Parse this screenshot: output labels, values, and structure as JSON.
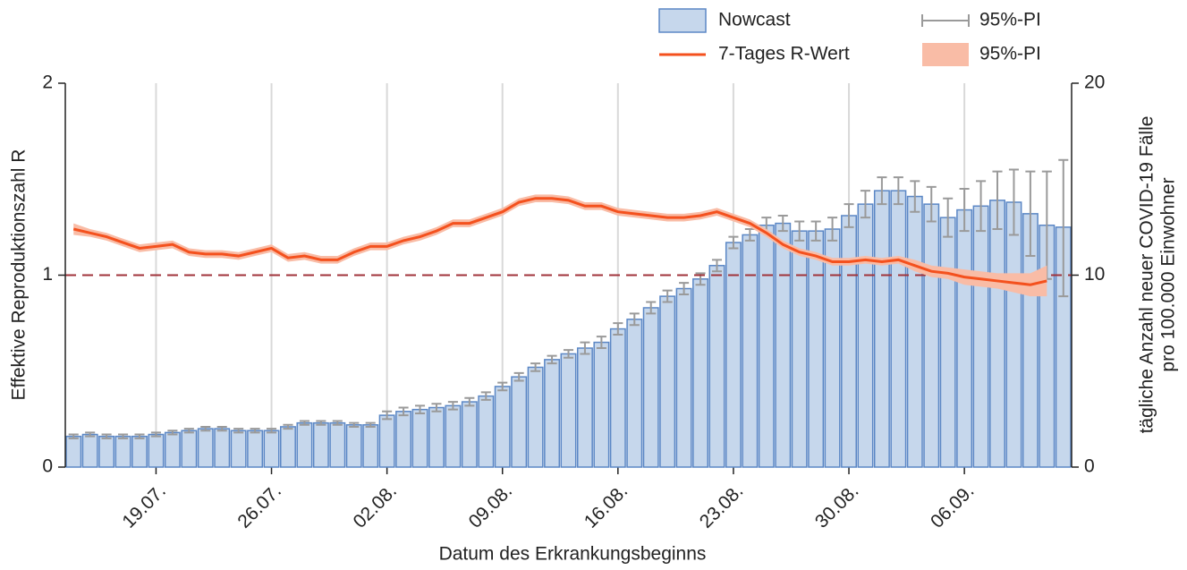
{
  "chart_data": {
    "type": "bar",
    "xlabel": "Datum des Erkrankungsbeginns",
    "ylabel": "Effektive Reproduktionszahl R",
    "y2label": [
      "tägliche Anzahl neuer COVID-19 Fälle",
      "pro 100.000 Einwohner"
    ],
    "categories": [
      null,
      null,
      null,
      null,
      null,
      "19.07.",
      null,
      null,
      null,
      null,
      null,
      null,
      "26.07.",
      null,
      null,
      null,
      null,
      null,
      null,
      "02.08.",
      null,
      null,
      null,
      null,
      null,
      null,
      "09.08.",
      null,
      null,
      null,
      null,
      null,
      null,
      "16.08.",
      null,
      null,
      null,
      null,
      null,
      null,
      "23.08.",
      null,
      null,
      null,
      null,
      null,
      null,
      "30.08.",
      null,
      null,
      null,
      null,
      null,
      null,
      "06.09.",
      null,
      null,
      null,
      null,
      null,
      null
    ],
    "ylim": [
      0,
      2
    ],
    "yticks": [
      0,
      1,
      2
    ],
    "y2lim": [
      0,
      20
    ],
    "y2ticks": [
      0,
      10,
      20
    ],
    "grid": "x",
    "hline": {
      "value": 1,
      "color": "#a0333a"
    },
    "series": [
      {
        "name": "Nowcast",
        "type": "bar",
        "axis": "y2",
        "color": "#c6d7ec",
        "edge_color": "#5b87c5",
        "interval_name": "95%-PI",
        "interval_color": "#9a9a9a",
        "values": [
          1.6,
          1.7,
          1.6,
          1.6,
          1.6,
          1.7,
          1.8,
          1.9,
          2.0,
          2.0,
          1.9,
          1.9,
          1.9,
          2.1,
          2.3,
          2.3,
          2.3,
          2.2,
          2.2,
          2.7,
          2.9,
          3.0,
          3.1,
          3.2,
          3.4,
          3.7,
          4.2,
          4.7,
          5.2,
          5.6,
          5.9,
          6.2,
          6.5,
          7.2,
          7.7,
          8.3,
          8.9,
          9.3,
          9.8,
          10.5,
          11.7,
          12.1,
          12.6,
          12.7,
          12.3,
          12.3,
          12.4,
          13.1,
          13.7,
          14.4,
          14.4,
          14.1,
          13.7,
          13.0,
          13.4,
          13.6,
          13.9,
          13.8,
          13.2,
          12.6,
          12.5
        ],
        "lower": [
          1.5,
          1.6,
          1.5,
          1.5,
          1.5,
          1.6,
          1.7,
          1.8,
          1.9,
          1.9,
          1.8,
          1.8,
          1.8,
          2.0,
          2.2,
          2.2,
          2.2,
          2.1,
          2.1,
          2.5,
          2.7,
          2.8,
          2.9,
          3.0,
          3.2,
          3.5,
          4.0,
          4.5,
          5.0,
          5.4,
          5.7,
          5.9,
          6.2,
          6.9,
          7.4,
          8.0,
          8.6,
          9.0,
          9.5,
          10.2,
          11.4,
          11.8,
          12.2,
          12.3,
          11.8,
          11.8,
          11.8,
          12.5,
          13.0,
          13.7,
          13.7,
          13.3,
          12.8,
          12.0,
          12.3,
          12.3,
          12.4,
          12.1,
          11.0,
          9.8,
          8.9
        ],
        "upper": [
          1.7,
          1.8,
          1.7,
          1.7,
          1.7,
          1.8,
          1.9,
          2.0,
          2.1,
          2.1,
          2.0,
          2.0,
          2.0,
          2.2,
          2.4,
          2.4,
          2.4,
          2.3,
          2.3,
          2.9,
          3.1,
          3.2,
          3.3,
          3.4,
          3.6,
          3.9,
          4.4,
          4.9,
          5.4,
          5.8,
          6.1,
          6.5,
          6.8,
          7.5,
          8.0,
          8.6,
          9.2,
          9.6,
          10.1,
          10.8,
          12.0,
          12.4,
          13.0,
          13.1,
          12.8,
          12.8,
          13.0,
          13.7,
          14.4,
          15.1,
          15.1,
          14.9,
          14.6,
          14.0,
          14.5,
          14.9,
          15.4,
          15.5,
          15.4,
          15.4,
          16.0
        ]
      },
      {
        "name": "7-Tages R-Wert",
        "type": "line",
        "axis": "y",
        "color": "#f4511e",
        "interval_name": "95%-PI",
        "interval_color": "#f9bca6",
        "values": [
          1.24,
          1.22,
          1.2,
          1.17,
          1.14,
          1.15,
          1.16,
          1.12,
          1.11,
          1.11,
          1.1,
          1.12,
          1.14,
          1.09,
          1.1,
          1.08,
          1.08,
          1.12,
          1.15,
          1.15,
          1.18,
          1.2,
          1.23,
          1.27,
          1.27,
          1.3,
          1.33,
          1.38,
          1.4,
          1.4,
          1.39,
          1.36,
          1.36,
          1.33,
          1.32,
          1.31,
          1.3,
          1.3,
          1.31,
          1.33,
          1.3,
          1.27,
          1.22,
          1.16,
          1.12,
          1.1,
          1.07,
          1.07,
          1.08,
          1.07,
          1.08,
          1.05,
          1.02,
          1.01,
          0.99,
          0.98,
          0.97,
          0.96,
          0.95,
          0.97,
          null
        ],
        "lower": [
          1.21,
          1.2,
          1.18,
          1.15,
          1.12,
          1.13,
          1.14,
          1.1,
          1.09,
          1.09,
          1.08,
          1.1,
          1.12,
          1.07,
          1.08,
          1.06,
          1.06,
          1.1,
          1.13,
          1.13,
          1.16,
          1.18,
          1.21,
          1.25,
          1.25,
          1.28,
          1.31,
          1.36,
          1.38,
          1.38,
          1.37,
          1.34,
          1.34,
          1.31,
          1.3,
          1.29,
          1.28,
          1.28,
          1.29,
          1.31,
          1.28,
          1.25,
          1.2,
          1.14,
          1.1,
          1.08,
          1.05,
          1.05,
          1.06,
          1.05,
          1.06,
          1.02,
          0.99,
          0.98,
          0.95,
          0.94,
          0.93,
          0.91,
          0.89,
          0.89,
          null
        ],
        "upper": [
          1.27,
          1.24,
          1.22,
          1.19,
          1.16,
          1.17,
          1.18,
          1.14,
          1.13,
          1.13,
          1.12,
          1.14,
          1.16,
          1.11,
          1.12,
          1.1,
          1.1,
          1.14,
          1.17,
          1.17,
          1.2,
          1.22,
          1.25,
          1.29,
          1.29,
          1.32,
          1.35,
          1.4,
          1.42,
          1.42,
          1.41,
          1.38,
          1.38,
          1.35,
          1.34,
          1.33,
          1.32,
          1.32,
          1.33,
          1.35,
          1.32,
          1.29,
          1.24,
          1.18,
          1.14,
          1.12,
          1.09,
          1.09,
          1.1,
          1.09,
          1.1,
          1.08,
          1.05,
          1.04,
          1.03,
          1.02,
          1.01,
          1.01,
          1.01,
          1.05,
          null
        ]
      }
    ]
  }
}
